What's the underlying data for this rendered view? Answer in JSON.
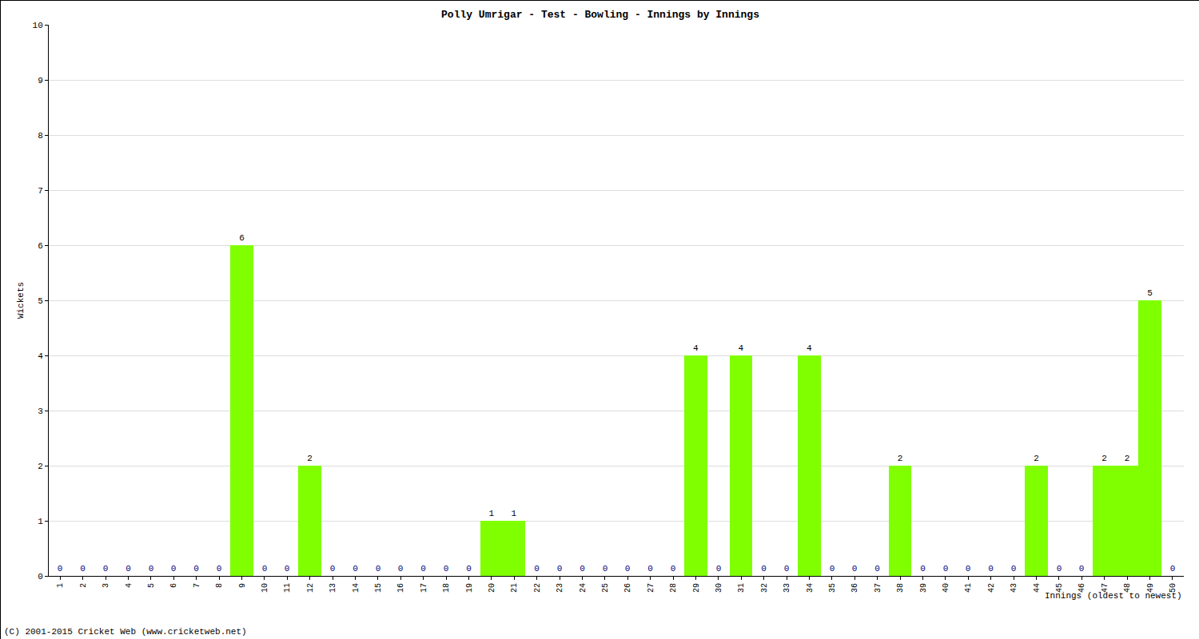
{
  "chart_data": {
    "type": "bar",
    "title": "Polly Umrigar - Test - Bowling - Innings by Innings",
    "x_label": "Innings (oldest to newest)",
    "y_label": "Wickets",
    "categories": [
      "1",
      "2",
      "3",
      "4",
      "5",
      "6",
      "7",
      "8",
      "9",
      "10",
      "11",
      "12",
      "13",
      "14",
      "15",
      "16",
      "17",
      "18",
      "19",
      "20",
      "21",
      "22",
      "23",
      "24",
      "25",
      "26",
      "27",
      "28",
      "29",
      "30",
      "31",
      "32",
      "33",
      "34",
      "35",
      "36",
      "37",
      "38",
      "39",
      "40",
      "41",
      "42",
      "43",
      "44",
      "45",
      "46",
      "47",
      "48",
      "49",
      "50"
    ],
    "values": [
      0,
      0,
      0,
      0,
      0,
      0,
      0,
      0,
      6,
      0,
      0,
      2,
      0,
      0,
      0,
      0,
      0,
      0,
      0,
      1,
      1,
      0,
      0,
      0,
      0,
      0,
      0,
      0,
      4,
      0,
      4,
      0,
      0,
      4,
      0,
      0,
      0,
      2,
      0,
      0,
      0,
      0,
      0,
      2,
      0,
      0,
      2,
      2,
      5,
      0
    ],
    "color": "#7fff00",
    "ylim": [
      0,
      10
    ],
    "yticks": [
      0,
      1,
      2,
      3,
      4,
      5,
      6,
      7,
      8,
      9,
      10
    ],
    "grid": true,
    "data_labels": true,
    "annotations": [
      "(C) 2001-2015 Cricket Web (www.cricketweb.net)"
    ]
  }
}
